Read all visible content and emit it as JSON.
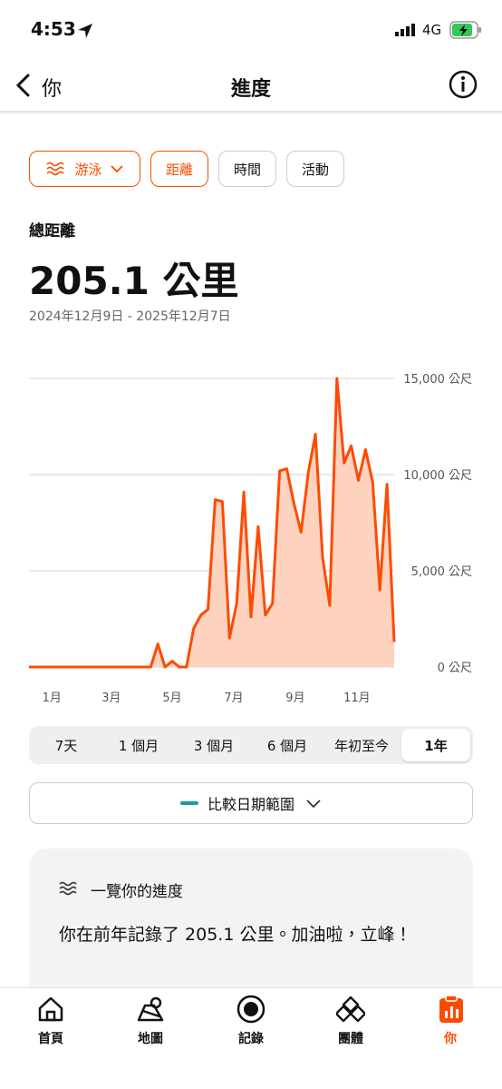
{
  "status_bar": {
    "time": "4:53",
    "network": "4G"
  },
  "nav": {
    "back": "你",
    "title": "進度"
  },
  "filters": [
    "游泳",
    "距離",
    "時間",
    "活動"
  ],
  "metric": {
    "label": "總距離",
    "value": "205.1 公里",
    "date_range": "2024年12月9日 - 2025年12月7日"
  },
  "chart_data": {
    "type": "area",
    "color": "#fc4c02",
    "fill_color": "#fdd3c0",
    "values": [
      0,
      0,
      0,
      0,
      0,
      0,
      0,
      0,
      0,
      0,
      0,
      0,
      0,
      0,
      0,
      0,
      0,
      0,
      1200,
      0,
      300,
      0,
      0,
      2000,
      2700,
      3000,
      8700,
      8600,
      1500,
      3300,
      9100,
      2600,
      7300,
      2700,
      3300,
      10200,
      10300,
      8500,
      7000,
      10100,
      12100,
      5700,
      3200,
      15000,
      10600,
      11500,
      9700,
      11300,
      9600,
      4000,
      9500,
      1300
    ],
    "xlim": [
      0,
      51
    ],
    "xticks": [
      {
        "value": 3.2,
        "label": "1月"
      },
      {
        "value": 11.5,
        "label": "3月"
      },
      {
        "value": 20.0,
        "label": "5月"
      },
      {
        "value": 28.6,
        "label": "7月"
      },
      {
        "value": 37.2,
        "label": "9月"
      },
      {
        "value": 45.8,
        "label": "11月"
      }
    ],
    "ylim": [
      0,
      15000
    ],
    "yticks": [
      {
        "value": 0,
        "label": "0 公尺"
      },
      {
        "value": 5000,
        "label": "5,000 公尺"
      },
      {
        "value": 10000,
        "label": "10,000 公尺"
      },
      {
        "value": 15000,
        "label": "15,000 公尺"
      }
    ],
    "grid": true
  },
  "ranges": [
    "7天",
    "1 個月",
    "3 個月",
    "6 個月",
    "年初至今",
    "1年"
  ],
  "compare": "比較日期範圍",
  "card": {
    "title": "一覽你的進度",
    "text": "你在前年記錄了 205.1 公里。加油啦，立峰！"
  },
  "tabs": [
    "首頁",
    "地圖",
    "記錄",
    "團體",
    "你"
  ]
}
